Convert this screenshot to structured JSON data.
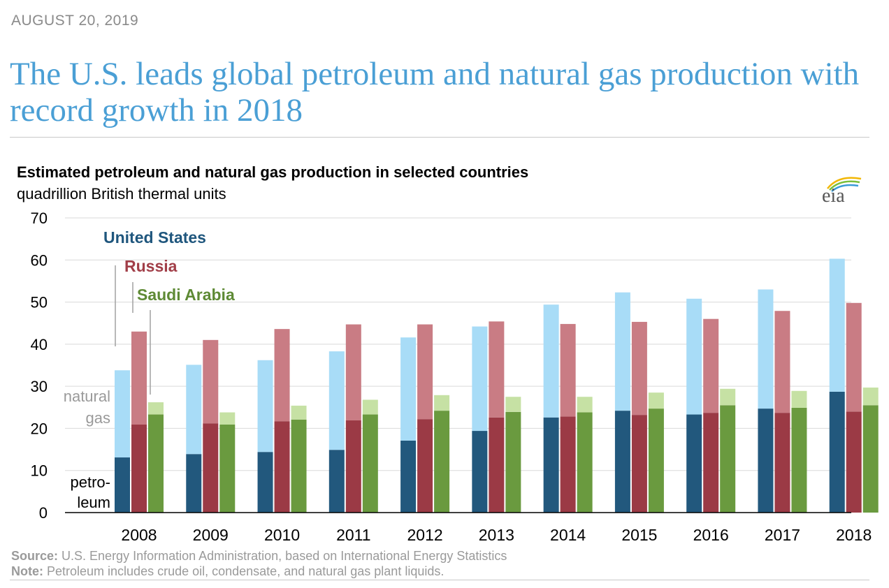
{
  "date": "AUGUST 20, 2019",
  "headline": "The U.S. leads global petroleum and natural gas production with record growth in 2018",
  "logo_text": "eia",
  "chart_data": {
    "type": "bar",
    "title": "Estimated petroleum and natural gas production in selected countries",
    "subtitle": "quadrillion British thermal units",
    "categories": [
      "2008",
      "2009",
      "2010",
      "2011",
      "2012",
      "2013",
      "2014",
      "2015",
      "2016",
      "2017",
      "2018"
    ],
    "ylim": [
      0,
      70
    ],
    "yticks": [
      "0",
      "10",
      "20",
      "30",
      "40",
      "50",
      "60",
      "70"
    ],
    "grid": true,
    "stacked": true,
    "countries": [
      {
        "name": "United States",
        "color_petroleum": "#22587d",
        "color_gas": "#a8dcf7",
        "label_color": "#1f567d",
        "petroleum": [
          13.1,
          13.9,
          14.4,
          14.9,
          17.1,
          19.4,
          22.6,
          24.2,
          23.3,
          24.7,
          28.7
        ],
        "natural_gas": [
          20.7,
          21.2,
          21.8,
          23.4,
          24.5,
          24.8,
          26.8,
          28.1,
          27.5,
          28.3,
          31.6
        ]
      },
      {
        "name": "Russia",
        "color_petroleum": "#9b3a45",
        "color_gas": "#c97c84",
        "label_color": "#a13e48",
        "petroleum": [
          20.9,
          21.2,
          21.7,
          21.9,
          22.2,
          22.6,
          22.8,
          23.2,
          23.7,
          23.7,
          24.0
        ],
        "natural_gas": [
          22.1,
          19.8,
          21.9,
          22.8,
          22.5,
          22.8,
          22.0,
          22.1,
          22.3,
          24.2,
          25.8
        ]
      },
      {
        "name": "Saudi Arabia",
        "color_petroleum": "#6a9a3f",
        "color_gas": "#c6e1a4",
        "label_color": "#5e8a35",
        "petroleum": [
          23.3,
          20.9,
          22.1,
          23.3,
          24.2,
          23.9,
          23.8,
          24.7,
          25.5,
          24.9,
          25.5
        ],
        "natural_gas": [
          2.9,
          2.9,
          3.3,
          3.5,
          3.7,
          3.6,
          3.7,
          3.8,
          3.9,
          4.0,
          4.2
        ]
      }
    ],
    "annotations": {
      "natural_gas": [
        "natural",
        "gas"
      ],
      "petroleum": [
        "petro-",
        "leum"
      ]
    }
  },
  "footer": {
    "source_label": "Source:",
    "source_text": " U.S. Energy Information Administration, based on International Energy Statistics",
    "note_label": "Note:",
    "note_text": " Petroleum includes crude oil, condensate, and natural gas plant liquids."
  }
}
